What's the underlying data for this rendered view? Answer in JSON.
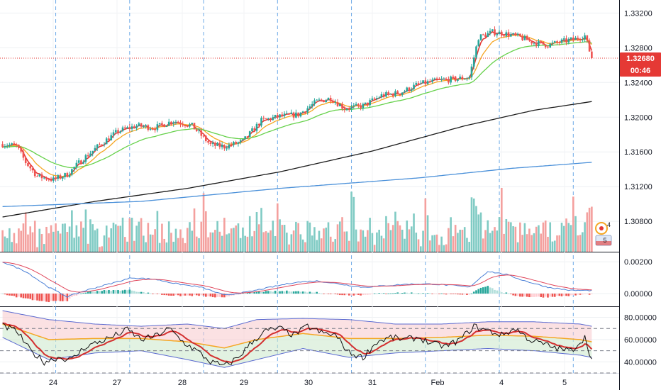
{
  "colors": {
    "up": "#26a69a",
    "down": "#ef5350",
    "vol_up": "#80cbc4",
    "vol_down": "#f4a09e",
    "ema_fast": "#e53935",
    "ema_mid": "#f5a623",
    "ema_green": "#66d14b",
    "ma_black": "#1a1a1a",
    "ma_blue": "#4a90d9",
    "price_line": "#e53935",
    "macd_line": "#4a7fd6",
    "signal_line": "#e0455a",
    "rsi_line": "#111111",
    "rsi_ma": "#d32f2f",
    "bb_mid": "#f5a623",
    "bb_band": "#5b6ad0"
  },
  "price_tag": {
    "price": "1.32680",
    "countdown": "00:46"
  },
  "badge": {
    "up_count": "4",
    "down_count": "5"
  },
  "chart_data": [
    {
      "type": "candlestick",
      "panel": "price",
      "x_ticks": [
        "24",
        "27",
        "28",
        "29",
        "30",
        "31",
        "Feb",
        "4",
        "5"
      ],
      "y_ticks": [
        "1.33200",
        "1.32800",
        "1.32400",
        "1.32000",
        "1.31600",
        "1.31200",
        "1.30800"
      ],
      "ylim": [
        1.3045,
        1.3335
      ],
      "last_price": 1.3268,
      "anchors": [
        [
          0,
          1.3169
        ],
        [
          6,
          1.3167
        ],
        [
          10,
          1.3148
        ],
        [
          15,
          1.3132
        ],
        [
          22,
          1.3128
        ],
        [
          28,
          1.3134
        ],
        [
          34,
          1.315
        ],
        [
          42,
          1.3168
        ],
        [
          50,
          1.3184
        ],
        [
          58,
          1.319
        ],
        [
          66,
          1.3188
        ],
        [
          74,
          1.3196
        ],
        [
          82,
          1.319
        ],
        [
          90,
          1.3168
        ],
        [
          96,
          1.3166
        ],
        [
          104,
          1.3172
        ],
        [
          112,
          1.3196
        ],
        [
          120,
          1.3201
        ],
        [
          128,
          1.3203
        ],
        [
          136,
          1.3218
        ],
        [
          142,
          1.3222
        ],
        [
          148,
          1.321
        ],
        [
          156,
          1.3213
        ],
        [
          164,
          1.3225
        ],
        [
          172,
          1.3228
        ],
        [
          180,
          1.3238
        ],
        [
          188,
          1.3242
        ],
        [
          196,
          1.3244
        ],
        [
          202,
          1.3246
        ],
        [
          206,
          1.3292
        ],
        [
          212,
          1.3298
        ],
        [
          218,
          1.3296
        ],
        [
          224,
          1.3292
        ],
        [
          230,
          1.3286
        ],
        [
          236,
          1.3283
        ],
        [
          242,
          1.3287
        ],
        [
          248,
          1.329
        ],
        [
          252,
          1.3294
        ],
        [
          255,
          1.3268
        ]
      ],
      "candle_count": 256,
      "moving_averages": [
        {
          "role": "ema_fast",
          "smoothing": 0.45
        },
        {
          "role": "ema_mid",
          "smoothing": 0.18
        },
        {
          "role": "ema_green",
          "smoothing": 0.06
        },
        {
          "role": "ma_black",
          "anchors": [
            [
              0,
              1.3085
            ],
            [
              40,
              1.3103
            ],
            [
              80,
              1.3118
            ],
            [
              120,
              1.3137
            ],
            [
              160,
              1.3161
            ],
            [
              200,
              1.319
            ],
            [
              230,
              1.3208
            ],
            [
              255,
              1.3218
            ]
          ]
        },
        {
          "role": "ma_blue",
          "anchors": [
            [
              0,
              1.3097
            ],
            [
              60,
              1.3103
            ],
            [
              120,
              1.3118
            ],
            [
              180,
              1.313
            ],
            [
              220,
              1.3141
            ],
            [
              255,
              1.3148
            ]
          ]
        }
      ],
      "session_markers": [
        23,
        55,
        87,
        119,
        151,
        183,
        215,
        247
      ]
    },
    {
      "type": "histogram",
      "panel": "macd",
      "y_ticks": [
        "0.00200",
        "0.00000"
      ],
      "ylim": [
        -0.0008,
        0.0025
      ],
      "macd_anchors": [
        [
          0,
          0.002
        ],
        [
          10,
          0.0014
        ],
        [
          20,
          0.0004
        ],
        [
          28,
          -0.0002
        ],
        [
          36,
          0.0002
        ],
        [
          46,
          0.0006
        ],
        [
          56,
          0.001
        ],
        [
          66,
          0.0009
        ],
        [
          76,
          0.0006
        ],
        [
          86,
          0.0004
        ],
        [
          96,
          -0.0001
        ],
        [
          106,
          0.0001
        ],
        [
          116,
          0.0004
        ],
        [
          126,
          0.0007
        ],
        [
          136,
          0.0008
        ],
        [
          146,
          0.0006
        ],
        [
          156,
          0.0004
        ],
        [
          166,
          0.0005
        ],
        [
          176,
          0.0006
        ],
        [
          186,
          0.0006
        ],
        [
          196,
          0.0005
        ],
        [
          202,
          0.0004
        ],
        [
          210,
          0.0014
        ],
        [
          218,
          0.0012
        ],
        [
          226,
          0.0008
        ],
        [
          236,
          0.0004
        ],
        [
          246,
          0.0002
        ],
        [
          255,
          0.0002
        ]
      ],
      "signal_smoothing": 0.15
    },
    {
      "type": "line",
      "panel": "rsi",
      "y_ticks": [
        "80.00000",
        "60.00000",
        "40.00000"
      ],
      "ylim": [
        30,
        88
      ],
      "levels": [
        70,
        50,
        30
      ],
      "rsi_anchors": [
        [
          0,
          72
        ],
        [
          6,
          68
        ],
        [
          12,
          50
        ],
        [
          18,
          40
        ],
        [
          24,
          44
        ],
        [
          30,
          42
        ],
        [
          36,
          54
        ],
        [
          42,
          58
        ],
        [
          48,
          63
        ],
        [
          54,
          69
        ],
        [
          60,
          60
        ],
        [
          66,
          63
        ],
        [
          72,
          70
        ],
        [
          78,
          58
        ],
        [
          84,
          50
        ],
        [
          90,
          40
        ],
        [
          96,
          36
        ],
        [
          102,
          44
        ],
        [
          108,
          58
        ],
        [
          114,
          68
        ],
        [
          120,
          70
        ],
        [
          126,
          64
        ],
        [
          132,
          72
        ],
        [
          138,
          66
        ],
        [
          144,
          64
        ],
        [
          150,
          48
        ],
        [
          156,
          44
        ],
        [
          162,
          58
        ],
        [
          168,
          62
        ],
        [
          174,
          60
        ],
        [
          180,
          62
        ],
        [
          186,
          56
        ],
        [
          192,
          54
        ],
        [
          198,
          60
        ],
        [
          204,
          72
        ],
        [
          210,
          68
        ],
        [
          216,
          64
        ],
        [
          222,
          70
        ],
        [
          228,
          60
        ],
        [
          234,
          56
        ],
        [
          240,
          52
        ],
        [
          246,
          50
        ],
        [
          252,
          62
        ],
        [
          255,
          42
        ]
      ],
      "ma_smoothing": 0.2,
      "bb_anchors": [
        [
          0,
          86,
          62
        ],
        [
          20,
          78,
          42
        ],
        [
          40,
          74,
          48
        ],
        [
          60,
          72,
          50
        ],
        [
          80,
          74,
          42
        ],
        [
          96,
          70,
          35
        ],
        [
          110,
          78,
          42
        ],
        [
          130,
          79,
          52
        ],
        [
          150,
          78,
          44
        ],
        [
          170,
          74,
          48
        ],
        [
          190,
          74,
          50
        ],
        [
          210,
          76,
          52
        ],
        [
          230,
          76,
          50
        ],
        [
          250,
          74,
          46
        ],
        [
          255,
          72,
          44
        ]
      ]
    }
  ]
}
